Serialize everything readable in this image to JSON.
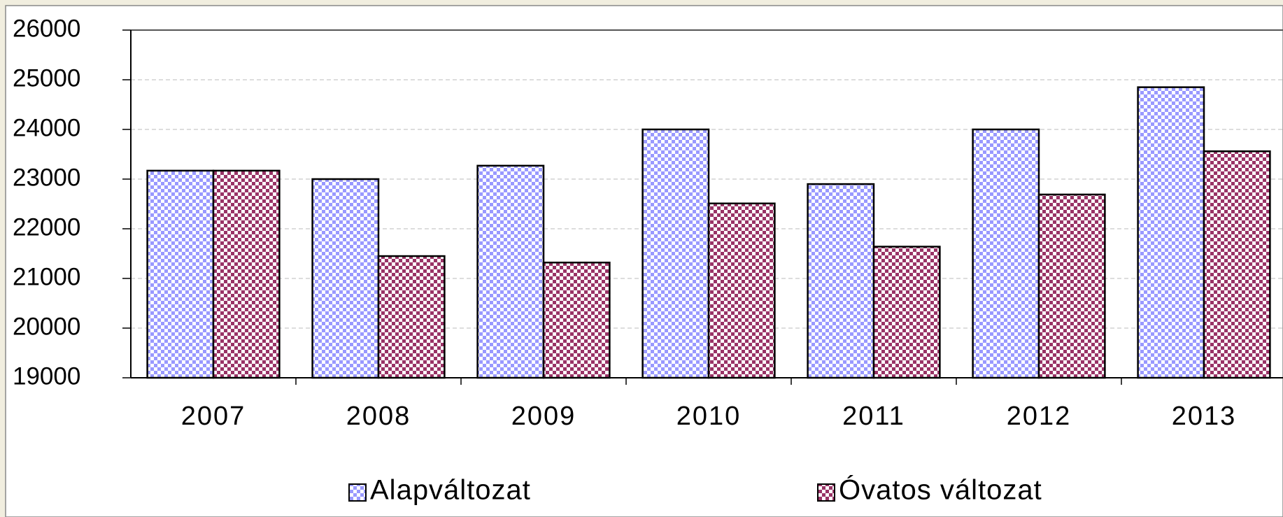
{
  "chart_data": {
    "type": "bar",
    "categories": [
      "2007",
      "2008",
      "2009",
      "2010",
      "2011",
      "2012",
      "2013"
    ],
    "series": [
      {
        "name": "Alapváltozat",
        "color": "#9999ff",
        "values": [
          23170,
          23000,
          23270,
          24000,
          22900,
          24000,
          24850
        ]
      },
      {
        "name": "Óvatos változat",
        "color": "#993366",
        "values": [
          23170,
          21450,
          21320,
          22510,
          21640,
          22690,
          23560
        ]
      }
    ],
    "ylim": [
      19000,
      26000
    ],
    "yticks": [
      19000,
      20000,
      21000,
      22000,
      23000,
      24000,
      25000,
      26000
    ],
    "grid": true,
    "legend": "bottom"
  }
}
